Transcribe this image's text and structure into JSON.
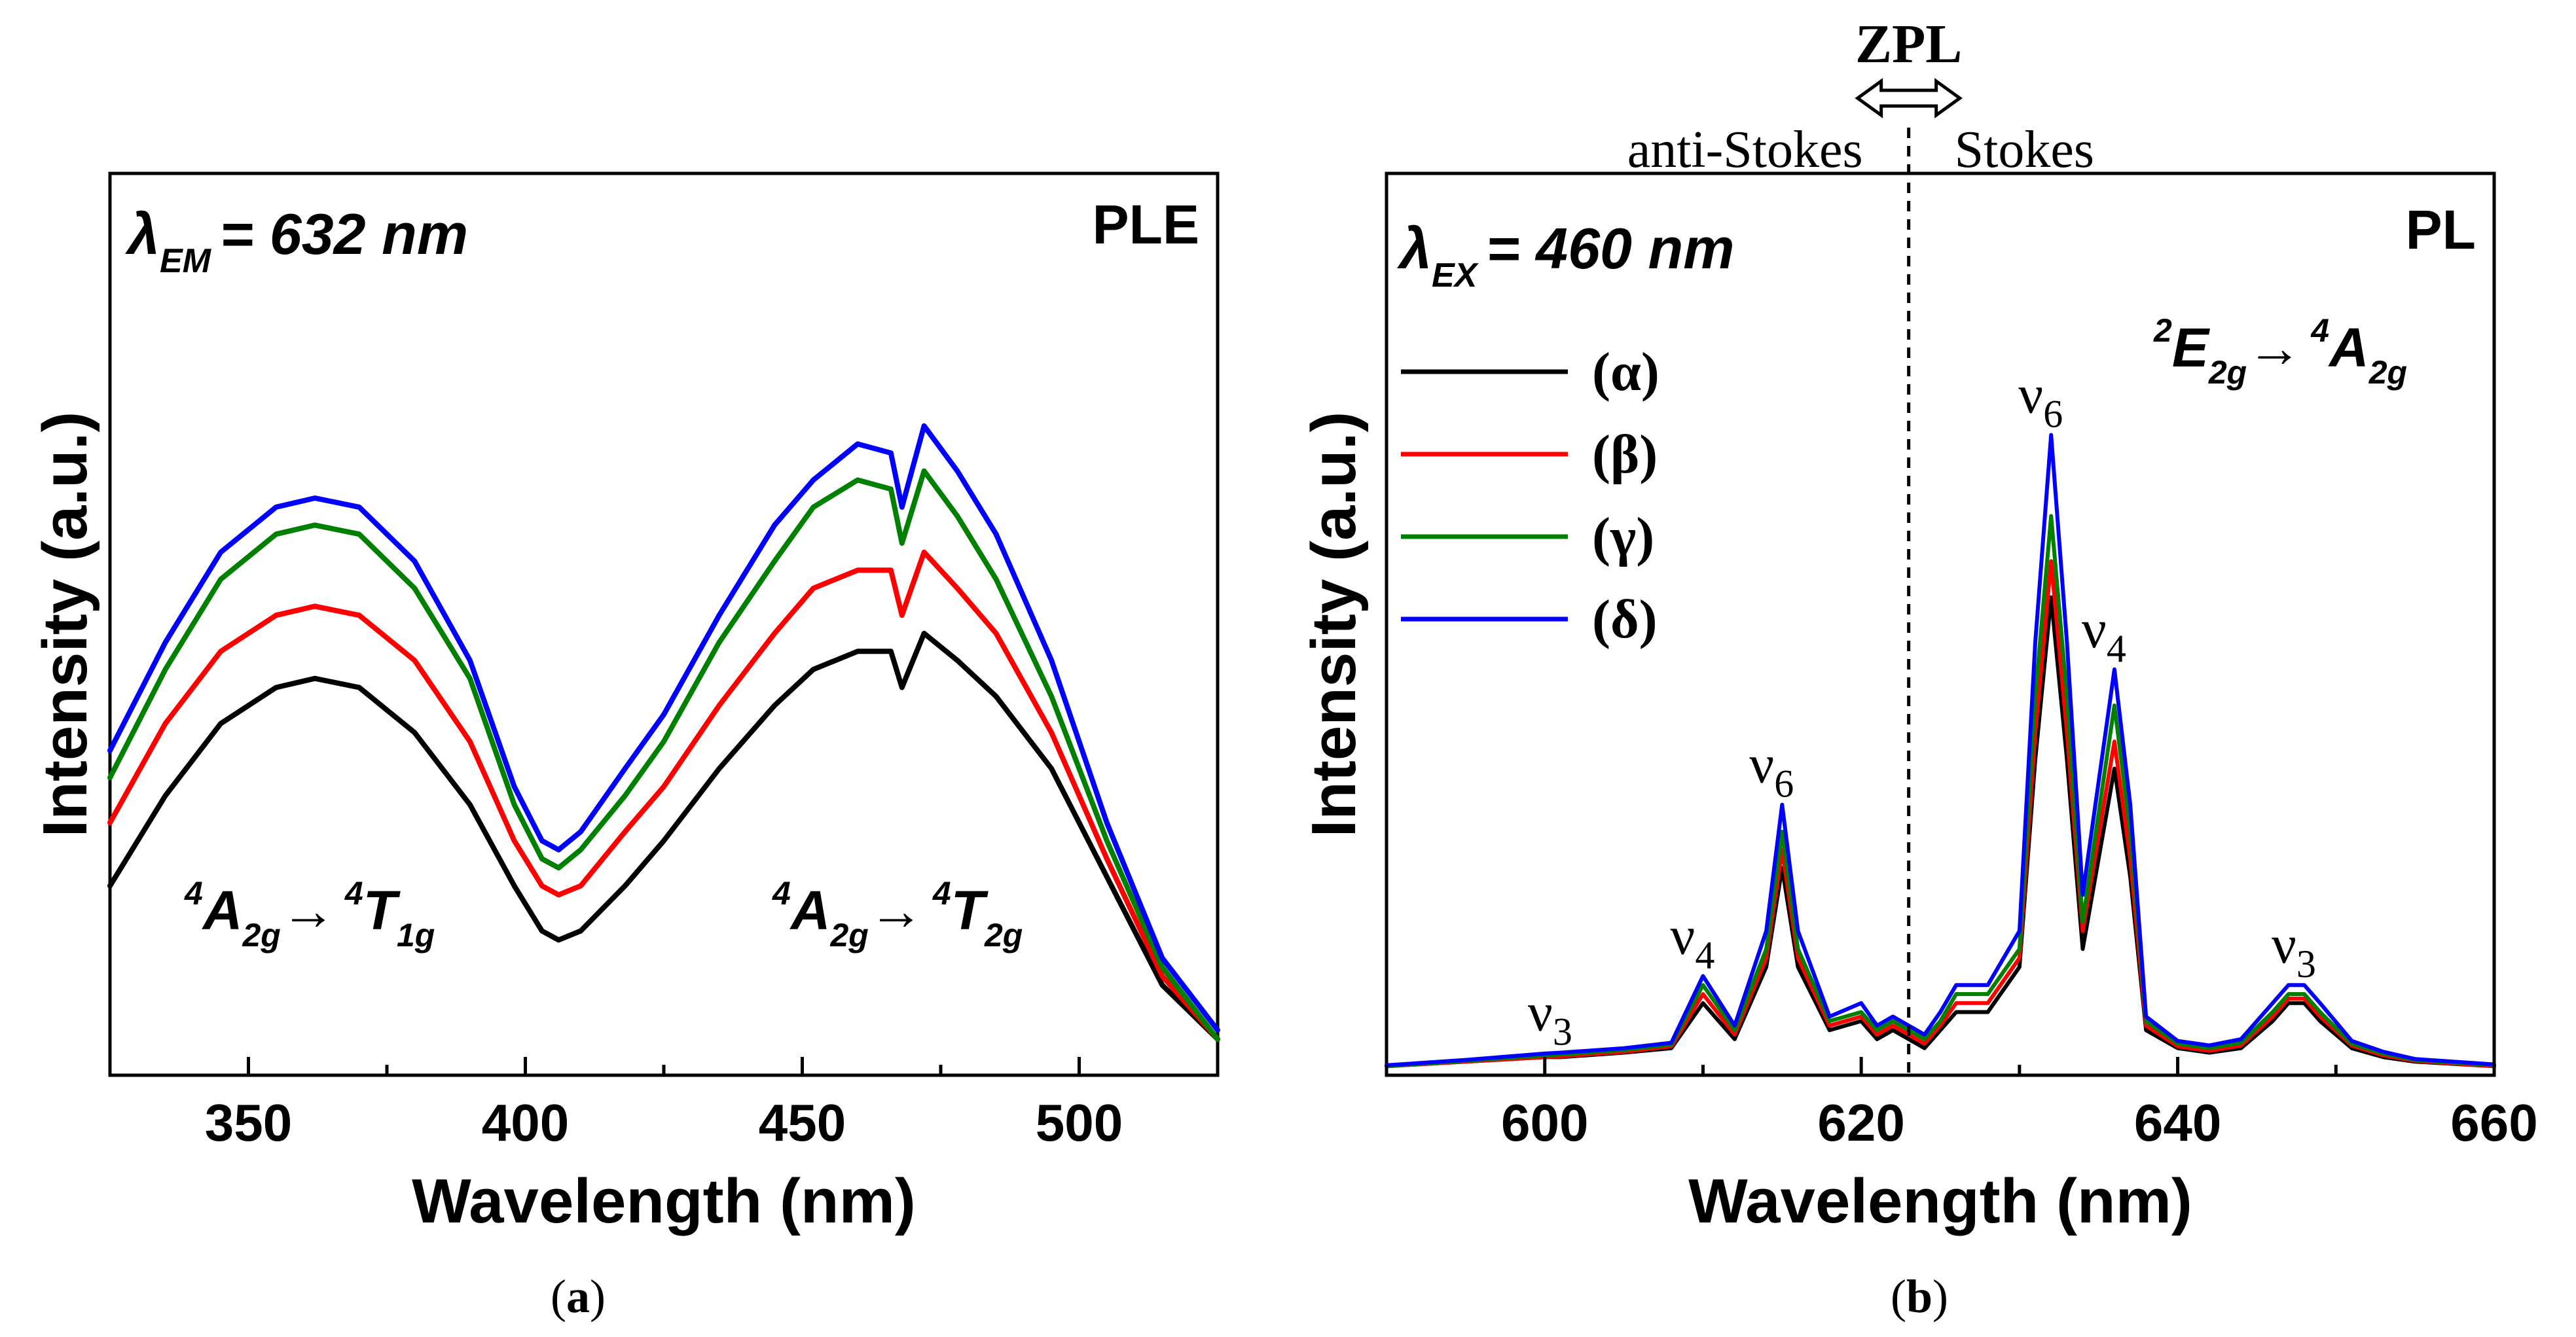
{
  "captions": {
    "a": "a",
    "b": "b"
  },
  "colors": {
    "alpha": "#000000",
    "beta": "#ff0000",
    "gamma": "#008000",
    "delta": "#0000ff"
  },
  "chart_data": [
    {
      "type": "line",
      "panel": "a",
      "tag": "PLE",
      "xlabel": "Wavelength (nm)",
      "ylabel": "Intensity (a.u.)",
      "xlim": [
        325,
        525
      ],
      "ylim": [
        0,
        1.0
      ],
      "xticks": [
        350,
        400,
        450,
        500
      ],
      "annotations": {
        "lambda_sym": "λ",
        "lambda_sub": "EM",
        "lambda_value": "= 632 nm",
        "t1_from": "A",
        "t1_from_sup": "4",
        "t1_from_sub": "2g",
        "t1_arrow": "→",
        "t1_to": "T",
        "t1_to_sup": "4",
        "t1_to_sub": "1g",
        "t2_from": "A",
        "t2_from_sup": "4",
        "t2_from_sub": "2g",
        "t2_arrow": "→",
        "t2_to": "T",
        "t2_to_sup": "4",
        "t2_to_sub": "2g"
      },
      "x": [
        325,
        335,
        345,
        355,
        362,
        370,
        380,
        390,
        398,
        403,
        406,
        410,
        418,
        425,
        435,
        445,
        452,
        460,
        466,
        468,
        472,
        478,
        485,
        495,
        505,
        515,
        525
      ],
      "series": [
        {
          "name": "(α)",
          "values": [
            0.21,
            0.31,
            0.39,
            0.43,
            0.44,
            0.43,
            0.38,
            0.3,
            0.21,
            0.16,
            0.15,
            0.16,
            0.21,
            0.26,
            0.34,
            0.41,
            0.45,
            0.47,
            0.47,
            0.43,
            0.49,
            0.46,
            0.42,
            0.34,
            0.22,
            0.1,
            0.04
          ]
        },
        {
          "name": "(β)",
          "values": [
            0.28,
            0.39,
            0.47,
            0.51,
            0.52,
            0.51,
            0.46,
            0.37,
            0.26,
            0.21,
            0.2,
            0.21,
            0.27,
            0.32,
            0.41,
            0.49,
            0.54,
            0.56,
            0.56,
            0.51,
            0.58,
            0.54,
            0.49,
            0.38,
            0.24,
            0.11,
            0.04
          ]
        },
        {
          "name": "(γ)",
          "values": [
            0.33,
            0.45,
            0.55,
            0.6,
            0.61,
            0.6,
            0.54,
            0.44,
            0.3,
            0.24,
            0.23,
            0.25,
            0.31,
            0.37,
            0.48,
            0.57,
            0.63,
            0.66,
            0.65,
            0.59,
            0.67,
            0.62,
            0.55,
            0.42,
            0.26,
            0.12,
            0.04
          ]
        },
        {
          "name": "(δ)",
          "values": [
            0.36,
            0.48,
            0.58,
            0.63,
            0.64,
            0.63,
            0.57,
            0.46,
            0.32,
            0.26,
            0.25,
            0.27,
            0.34,
            0.4,
            0.51,
            0.61,
            0.66,
            0.7,
            0.69,
            0.63,
            0.72,
            0.67,
            0.6,
            0.46,
            0.28,
            0.13,
            0.05
          ]
        }
      ]
    },
    {
      "type": "line",
      "panel": "b",
      "tag": "PL",
      "xlabel": "Wavelength (nm)",
      "ylabel": "Intensity (a.u.)",
      "xlim": [
        590,
        660
      ],
      "ylim": [
        0,
        1.0
      ],
      "xticks": [
        600,
        620,
        640,
        660
      ],
      "zpl_x": 623,
      "top_labels": {
        "zpl": "ZPL",
        "anti_stokes": "anti-Stokes",
        "stokes": "Stokes"
      },
      "annotations": {
        "lambda_sym": "λ",
        "lambda_sub": "EX",
        "lambda_value": "= 460 nm",
        "tr_from": "E",
        "tr_from_sup": "2",
        "tr_from_sub": "2g",
        "tr_arrow": "→",
        "tr_to": "A",
        "tr_to_sup": "4",
        "tr_to_sub": "2g"
      },
      "peak_labels": [
        {
          "nu": "ν",
          "sub": "3",
          "x": 601
        },
        {
          "nu": "ν",
          "sub": "4",
          "x": 610
        },
        {
          "nu": "ν",
          "sub": "6",
          "x": 615
        },
        {
          "nu": "ν",
          "sub": "6",
          "x": 632
        },
        {
          "nu": "ν",
          "sub": "4",
          "x": 636
        },
        {
          "nu": "ν",
          "sub": "3",
          "x": 648
        }
      ],
      "x": [
        590,
        595,
        600,
        601,
        605,
        608,
        610,
        612,
        614,
        615,
        616,
        618,
        620,
        621,
        622,
        623,
        624,
        625,
        626,
        628,
        630,
        631,
        632,
        633,
        634,
        636,
        637,
        638,
        640,
        642,
        644,
        646,
        647,
        648,
        649,
        651,
        653,
        655,
        660
      ],
      "series": [
        {
          "name": "(α)",
          "values": [
            0.01,
            0.015,
            0.02,
            0.02,
            0.025,
            0.03,
            0.08,
            0.04,
            0.12,
            0.23,
            0.12,
            0.05,
            0.06,
            0.04,
            0.05,
            0.04,
            0.03,
            0.05,
            0.07,
            0.07,
            0.12,
            0.35,
            0.53,
            0.35,
            0.14,
            0.34,
            0.22,
            0.05,
            0.03,
            0.025,
            0.03,
            0.06,
            0.08,
            0.08,
            0.06,
            0.03,
            0.02,
            0.015,
            0.01
          ]
        },
        {
          "name": "(β)",
          "values": [
            0.01,
            0.015,
            0.02,
            0.021,
            0.026,
            0.032,
            0.09,
            0.045,
            0.13,
            0.25,
            0.13,
            0.055,
            0.065,
            0.045,
            0.055,
            0.045,
            0.035,
            0.055,
            0.08,
            0.08,
            0.13,
            0.38,
            0.57,
            0.38,
            0.16,
            0.37,
            0.24,
            0.055,
            0.032,
            0.027,
            0.033,
            0.065,
            0.085,
            0.085,
            0.065,
            0.033,
            0.022,
            0.016,
            0.01
          ]
        },
        {
          "name": "(γ)",
          "values": [
            0.01,
            0.016,
            0.022,
            0.023,
            0.028,
            0.034,
            0.1,
            0.05,
            0.14,
            0.27,
            0.14,
            0.06,
            0.07,
            0.05,
            0.06,
            0.05,
            0.04,
            0.06,
            0.09,
            0.09,
            0.14,
            0.42,
            0.62,
            0.42,
            0.17,
            0.41,
            0.27,
            0.06,
            0.035,
            0.03,
            0.036,
            0.07,
            0.09,
            0.09,
            0.07,
            0.035,
            0.024,
            0.017,
            0.011
          ]
        },
        {
          "name": "(δ)",
          "values": [
            0.011,
            0.017,
            0.024,
            0.025,
            0.03,
            0.036,
            0.11,
            0.055,
            0.16,
            0.3,
            0.16,
            0.065,
            0.08,
            0.055,
            0.065,
            0.055,
            0.045,
            0.07,
            0.1,
            0.1,
            0.16,
            0.48,
            0.71,
            0.48,
            0.2,
            0.45,
            0.3,
            0.065,
            0.038,
            0.033,
            0.04,
            0.08,
            0.1,
            0.1,
            0.08,
            0.038,
            0.026,
            0.018,
            0.012
          ]
        }
      ]
    }
  ]
}
